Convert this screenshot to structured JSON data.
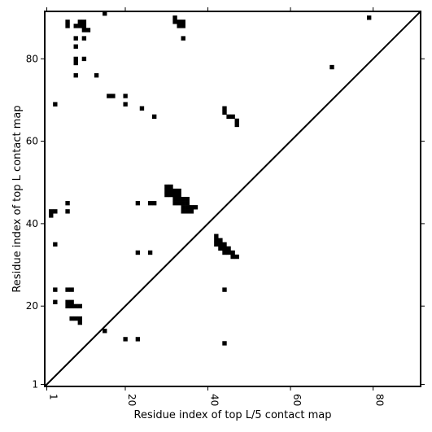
{
  "chart_data": {
    "type": "heatmap",
    "title": "",
    "xlabel": "Residue index of top L/5 contact map",
    "ylabel": "Residue index of top L contact map",
    "xlim": [
      0.5,
      91.5
    ],
    "ylim": [
      0.5,
      91.5
    ],
    "x_ticks": [
      {
        "value": 1,
        "label": "1"
      },
      {
        "value": 20,
        "label": "20"
      },
      {
        "value": 40,
        "label": "40"
      },
      {
        "value": 60,
        "label": "60"
      },
      {
        "value": 80,
        "label": "80"
      }
    ],
    "y_ticks": [
      {
        "value": 1,
        "label": "1"
      },
      {
        "value": 20,
        "label": "20"
      },
      {
        "value": 40,
        "label": "40"
      },
      {
        "value": 60,
        "label": "60"
      },
      {
        "value": 80,
        "label": "80"
      }
    ],
    "diagonal": true,
    "contact_color": "#000000",
    "background_color": "#ffffff",
    "contacts": [
      [
        15,
        91
      ],
      [
        32,
        90
      ],
      [
        79,
        90
      ],
      [
        6,
        89
      ],
      [
        9,
        89
      ],
      [
        10,
        89
      ],
      [
        32,
        89
      ],
      [
        33,
        89
      ],
      [
        34,
        89
      ],
      [
        6,
        88
      ],
      [
        8,
        88
      ],
      [
        9,
        88
      ],
      [
        10,
        88
      ],
      [
        33,
        88
      ],
      [
        34,
        88
      ],
      [
        10,
        87
      ],
      [
        11,
        87
      ],
      [
        8,
        85
      ],
      [
        10,
        85
      ],
      [
        34,
        85
      ],
      [
        8,
        83
      ],
      [
        8,
        80
      ],
      [
        10,
        80
      ],
      [
        8,
        79
      ],
      [
        70,
        78
      ],
      [
        8,
        76
      ],
      [
        13,
        76
      ],
      [
        16,
        71
      ],
      [
        17,
        71
      ],
      [
        20,
        71
      ],
      [
        3,
        69
      ],
      [
        20,
        69
      ],
      [
        24,
        68
      ],
      [
        44,
        68
      ],
      [
        44,
        67
      ],
      [
        45,
        66
      ],
      [
        46,
        66
      ],
      [
        27,
        66
      ],
      [
        47,
        65
      ],
      [
        47,
        64
      ],
      [
        30,
        49
      ],
      [
        31,
        49
      ],
      [
        30,
        48
      ],
      [
        31,
        48
      ],
      [
        32,
        48
      ],
      [
        33,
        48
      ],
      [
        30,
        47
      ],
      [
        31,
        47
      ],
      [
        32,
        47
      ],
      [
        33,
        47
      ],
      [
        32,
        46
      ],
      [
        33,
        46
      ],
      [
        34,
        46
      ],
      [
        35,
        46
      ],
      [
        32,
        45
      ],
      [
        33,
        45
      ],
      [
        34,
        45
      ],
      [
        35,
        45
      ],
      [
        34,
        44
      ],
      [
        35,
        44
      ],
      [
        36,
        44
      ],
      [
        37,
        44
      ],
      [
        34,
        43
      ],
      [
        35,
        43
      ],
      [
        36,
        43
      ],
      [
        6,
        45
      ],
      [
        23,
        45
      ],
      [
        26,
        45
      ],
      [
        27,
        45
      ],
      [
        2,
        43
      ],
      [
        3,
        43
      ],
      [
        6,
        43
      ],
      [
        2,
        42
      ],
      [
        42,
        37
      ],
      [
        42,
        36
      ],
      [
        43,
        36
      ],
      [
        42,
        35
      ],
      [
        43,
        35
      ],
      [
        44,
        35
      ],
      [
        43,
        34
      ],
      [
        44,
        34
      ],
      [
        45,
        34
      ],
      [
        44,
        33
      ],
      [
        45,
        33
      ],
      [
        46,
        33
      ],
      [
        46,
        32
      ],
      [
        47,
        32
      ],
      [
        3,
        35
      ],
      [
        23,
        33
      ],
      [
        26,
        33
      ],
      [
        3,
        24
      ],
      [
        6,
        24
      ],
      [
        7,
        24
      ],
      [
        44,
        24
      ],
      [
        3,
        21
      ],
      [
        6,
        21
      ],
      [
        7,
        21
      ],
      [
        6,
        20
      ],
      [
        7,
        20
      ],
      [
        8,
        20
      ],
      [
        9,
        20
      ],
      [
        7,
        17
      ],
      [
        8,
        17
      ],
      [
        9,
        17
      ],
      [
        9,
        16
      ],
      [
        15,
        14
      ],
      [
        20,
        12
      ],
      [
        23,
        12
      ],
      [
        44,
        11
      ]
    ]
  }
}
